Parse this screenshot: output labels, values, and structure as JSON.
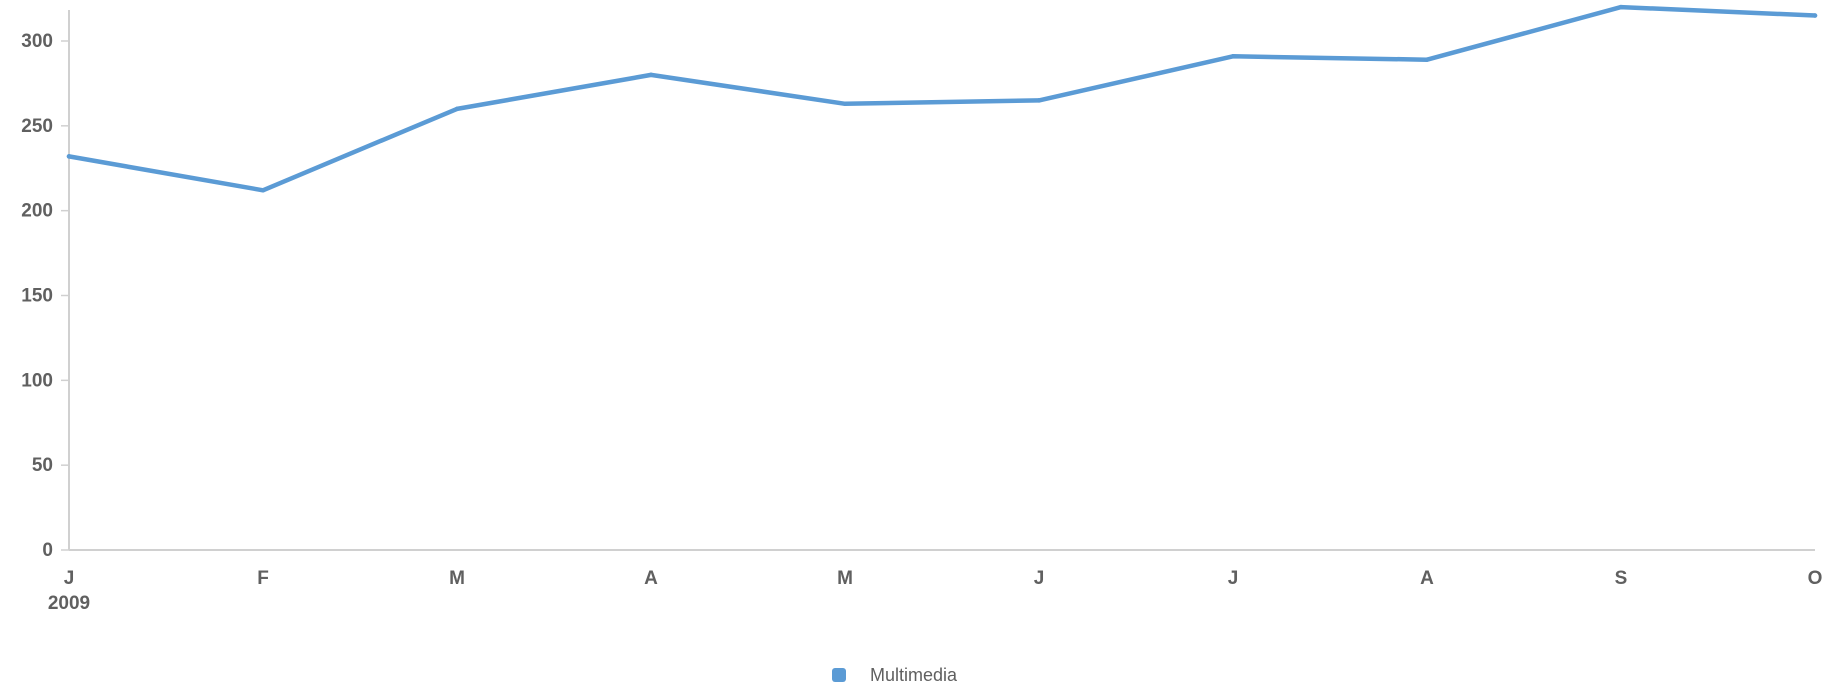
{
  "chart_data": {
    "type": "line",
    "categories": [
      "J",
      "F",
      "M",
      "A",
      "M",
      "J",
      "J",
      "A",
      "S",
      "O"
    ],
    "x_sublabel": "2009",
    "series": [
      {
        "name": "Multimedia",
        "values": [
          232,
          212,
          260,
          280,
          263,
          265,
          291,
          289,
          320,
          315
        ],
        "color": "#5b9bd5"
      }
    ],
    "yticks": [
      "0",
      "50",
      "100",
      "150",
      "200",
      "250",
      "300"
    ],
    "ylim": [
      0,
      320
    ],
    "grid": false,
    "legend": "bottom-center",
    "title": "",
    "xlabel": "",
    "ylabel": ""
  }
}
